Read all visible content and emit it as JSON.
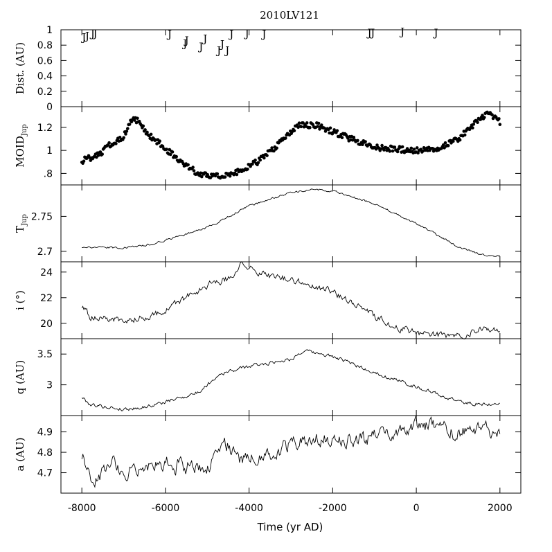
{
  "chart_data": {
    "type": "line",
    "title": "2010LV121",
    "xlabel": "Time (yr AD)",
    "xlim": [
      -8500,
      2500
    ],
    "x_ticks": [
      -8000,
      -6000,
      -4000,
      -2000,
      0,
      2000
    ],
    "x_tick_labels": [
      "-8000",
      "-6000",
      "-4000",
      "-2000",
      "0",
      "2000"
    ],
    "panels": [
      {
        "id": "dist",
        "type": "scatter",
        "ylabel_parts": [
          "Dist. (AU)"
        ],
        "ylim": [
          0,
          1
        ],
        "y_ticks": [
          0,
          0.2,
          0.4,
          0.6,
          0.8,
          1
        ],
        "y_tick_labels": [
          "0",
          "0.2",
          "0.4",
          "0.6",
          "0.8",
          "1"
        ],
        "marker_label": "J",
        "points": [
          {
            "x": -7950,
            "y": 0.91
          },
          {
            "x": -7870,
            "y": 0.93
          },
          {
            "x": -7740,
            "y": 0.96
          },
          {
            "x": -7680,
            "y": 0.96
          },
          {
            "x": -5900,
            "y": 0.95
          },
          {
            "x": -5530,
            "y": 0.83
          },
          {
            "x": -5490,
            "y": 0.87
          },
          {
            "x": -5150,
            "y": 0.79
          },
          {
            "x": -5050,
            "y": 0.89
          },
          {
            "x": -4720,
            "y": 0.74
          },
          {
            "x": -4640,
            "y": 0.82
          },
          {
            "x": -4520,
            "y": 0.74
          },
          {
            "x": -4420,
            "y": 0.95
          },
          {
            "x": -4050,
            "y": 0.96
          },
          {
            "x": -3640,
            "y": 0.95
          },
          {
            "x": -1120,
            "y": 0.97
          },
          {
            "x": -1040,
            "y": 0.97
          },
          {
            "x": -330,
            "y": 0.98
          },
          {
            "x": 470,
            "y": 0.97
          }
        ]
      },
      {
        "id": "moid",
        "type": "scatter",
        "ylabel_parts": [
          "MOID",
          "Jup"
        ],
        "ylim": [
          0.7,
          1.38
        ],
        "y_ticks": [
          0.8,
          1,
          1.2
        ],
        "y_tick_labels": [
          ".8",
          "1",
          "1.2"
        ],
        "anchors": [
          [
            -8000,
            0.91
          ],
          [
            -7600,
            0.96
          ],
          [
            -7300,
            1.06
          ],
          [
            -7000,
            1.12
          ],
          [
            -6800,
            1.28
          ],
          [
            -6600,
            1.24
          ],
          [
            -6400,
            1.13
          ],
          [
            -6000,
            1.02
          ],
          [
            -5600,
            0.88
          ],
          [
            -5200,
            0.8
          ],
          [
            -4700,
            0.77
          ],
          [
            -4300,
            0.81
          ],
          [
            -3800,
            0.9
          ],
          [
            -3300,
            1.05
          ],
          [
            -2800,
            1.22
          ],
          [
            -2400,
            1.22
          ],
          [
            -1900,
            1.15
          ],
          [
            -1500,
            1.09
          ],
          [
            -900,
            1.02
          ],
          [
            0,
            1.0
          ],
          [
            500,
            1.02
          ],
          [
            1000,
            1.1
          ],
          [
            1400,
            1.23
          ],
          [
            1700,
            1.32
          ],
          [
            2000,
            1.25
          ]
        ],
        "x_start": -8000,
        "x_end": 2000,
        "count": 430,
        "scatter": 0.025
      },
      {
        "id": "tjup",
        "type": "line",
        "ylabel_parts": [
          "T",
          "Jup"
        ],
        "ylim": [
          2.685,
          2.795
        ],
        "y_ticks": [
          2.7,
          2.75
        ],
        "y_tick_labels": [
          "2.7",
          "2.75"
        ],
        "anchors": [
          [
            -8000,
            2.706
          ],
          [
            -7000,
            2.705
          ],
          [
            -6500,
            2.708
          ],
          [
            -6000,
            2.716
          ],
          [
            -5000,
            2.734
          ],
          [
            -4000,
            2.765
          ],
          [
            -3000,
            2.784
          ],
          [
            -2400,
            2.789
          ],
          [
            -2000,
            2.786
          ],
          [
            -1000,
            2.768
          ],
          [
            0,
            2.74
          ],
          [
            1000,
            2.707
          ],
          [
            1500,
            2.696
          ],
          [
            2000,
            2.693
          ]
        ],
        "x_start": -8000,
        "x_end": 2000,
        "count": 420,
        "noise": 0.0012
      },
      {
        "id": "incl",
        "type": "line",
        "ylabel_parts": [
          "i (°)"
        ],
        "ylim": [
          18.8,
          24.8
        ],
        "y_ticks": [
          20,
          22,
          24
        ],
        "y_tick_labels": [
          "20",
          "22",
          "24"
        ],
        "anchors": [
          [
            -8000,
            21.3
          ],
          [
            -7800,
            20.5
          ],
          [
            -7000,
            20.2
          ],
          [
            -6500,
            20.5
          ],
          [
            -6000,
            21.0
          ],
          [
            -5500,
            22.0
          ],
          [
            -5000,
            23.0
          ],
          [
            -4500,
            23.5
          ],
          [
            -4200,
            24.5
          ],
          [
            -3600,
            23.8
          ],
          [
            -3000,
            23.4
          ],
          [
            -2000,
            22.5
          ],
          [
            -1200,
            21.0
          ],
          [
            -600,
            19.8
          ],
          [
            0,
            19.3
          ],
          [
            800,
            19.0
          ],
          [
            1500,
            19.4
          ],
          [
            2000,
            19.6
          ]
        ],
        "x_start": -8000,
        "x_end": 2000,
        "count": 420,
        "noise": 0.22
      },
      {
        "id": "q",
        "type": "line",
        "ylabel_parts": [
          "q (AU)"
        ],
        "ylim": [
          2.5,
          3.75
        ],
        "y_ticks": [
          3,
          3.5
        ],
        "y_tick_labels": [
          "3",
          "3.5"
        ],
        "anchors": [
          [
            -8000,
            2.8
          ],
          [
            -7800,
            2.68
          ],
          [
            -7000,
            2.6
          ],
          [
            -6500,
            2.64
          ],
          [
            -6000,
            2.72
          ],
          [
            -5200,
            2.88
          ],
          [
            -4700,
            3.18
          ],
          [
            -4000,
            3.3
          ],
          [
            -3000,
            3.42
          ],
          [
            -2700,
            3.55
          ],
          [
            -2000,
            3.46
          ],
          [
            -1200,
            3.25
          ],
          [
            -500,
            3.08
          ],
          [
            0,
            2.97
          ],
          [
            700,
            2.8
          ],
          [
            1200,
            2.7
          ],
          [
            2000,
            2.68
          ]
        ],
        "x_start": -8000,
        "x_end": 2000,
        "count": 420,
        "noise": 0.025
      },
      {
        "id": "a",
        "type": "line",
        "ylabel_parts": [
          "a (AU)"
        ],
        "ylim": [
          4.6,
          4.98
        ],
        "y_ticks": [
          4.7,
          4.8,
          4.9
        ],
        "y_tick_labels": [
          "4.7",
          "4.8",
          "4.9"
        ],
        "anchors": [
          [
            -8000,
            4.78
          ],
          [
            -7700,
            4.65
          ],
          [
            -7300,
            4.76
          ],
          [
            -7000,
            4.7
          ],
          [
            -6500,
            4.74
          ],
          [
            -6000,
            4.75
          ],
          [
            -5500,
            4.73
          ],
          [
            -5000,
            4.73
          ],
          [
            -4600,
            4.87
          ],
          [
            -4300,
            4.76
          ],
          [
            -3500,
            4.78
          ],
          [
            -3000,
            4.84
          ],
          [
            -2500,
            4.87
          ],
          [
            -2000,
            4.86
          ],
          [
            -1000,
            4.87
          ],
          [
            -500,
            4.89
          ],
          [
            0,
            4.93
          ],
          [
            500,
            4.92
          ],
          [
            1000,
            4.89
          ],
          [
            1500,
            4.91
          ],
          [
            2000,
            4.9
          ]
        ],
        "x_start": -8000,
        "x_end": 2000,
        "count": 420,
        "noise": 0.03
      }
    ]
  }
}
